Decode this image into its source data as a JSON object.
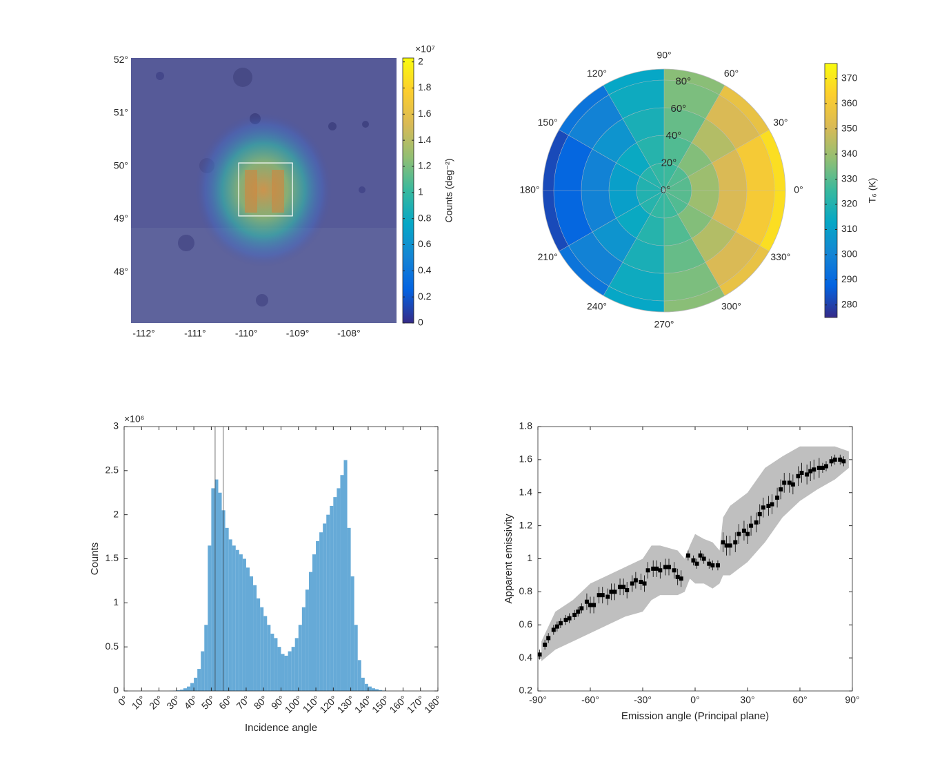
{
  "chart_data": [
    {
      "type": "map",
      "xlim": [
        -112.25,
        -107.07
      ],
      "ylim": [
        47.04,
        52.04
      ],
      "xticks": [
        {
          "value": -112,
          "label": "-112°"
        },
        {
          "value": -111,
          "label": "-111°"
        },
        {
          "value": -110,
          "label": "-110°"
        },
        {
          "value": -109,
          "label": "-109°"
        },
        {
          "value": -108,
          "label": "-108°"
        }
      ],
      "yticks": [
        {
          "value": 48,
          "label": "48°"
        },
        {
          "value": 49,
          "label": "49°"
        },
        {
          "value": 50,
          "label": "50°"
        },
        {
          "value": 51,
          "label": "51°"
        },
        {
          "value": 52,
          "label": "52°"
        }
      ],
      "highlight_box": {
        "x": [
          -110.15,
          -109.1
        ],
        "y": [
          49.06,
          50.06
        ]
      },
      "colorbar": {
        "label": "Counts (deg⁻²)",
        "multiplier": "×10⁷",
        "colormap": "parula",
        "lim": [
          0,
          2.03
        ],
        "ticks": [
          0,
          0.2,
          0.4,
          0.6,
          0.8,
          1,
          1.2,
          1.4,
          1.6,
          1.8,
          2
        ]
      }
    },
    {
      "type": "polar",
      "rlim": [
        0,
        88
      ],
      "rticks": [
        {
          "value": 0,
          "label": "0°"
        },
        {
          "value": 20,
          "label": "20°"
        },
        {
          "value": 40,
          "label": "40°"
        },
        {
          "value": 60,
          "label": "60°"
        },
        {
          "value": 80,
          "label": "80°"
        }
      ],
      "thetaticks": [
        {
          "value": 0,
          "label": "0°"
        },
        {
          "value": 30,
          "label": "30°"
        },
        {
          "value": 60,
          "label": "60°"
        },
        {
          "value": 90,
          "label": "90°"
        },
        {
          "value": 120,
          "label": "120°"
        },
        {
          "value": 150,
          "label": "150°"
        },
        {
          "value": 180,
          "label": "180°"
        },
        {
          "value": 210,
          "label": "210°"
        },
        {
          "value": 240,
          "label": "240°"
        },
        {
          "value": 270,
          "label": "270°"
        },
        {
          "value": 300,
          "label": "300°"
        },
        {
          "value": 330,
          "label": "330°"
        }
      ],
      "theta_edges": [
        0,
        30,
        60,
        90,
        120,
        150,
        180,
        210,
        240,
        270,
        300,
        330,
        360
      ],
      "r_edges": [
        0,
        20,
        40,
        60,
        80,
        88
      ],
      "values": [
        [
          330,
          329,
          326,
          324,
          321,
          320,
          320,
          321,
          324,
          326,
          329,
          330
        ],
        [
          340,
          336,
          329,
          321,
          314,
          310,
          310,
          314,
          321,
          329,
          336,
          340
        ],
        [
          351,
          344,
          332,
          318,
          306,
          299,
          299,
          306,
          318,
          332,
          344,
          351
        ],
        [
          361,
          351,
          335,
          315,
          299,
          289,
          289,
          299,
          315,
          335,
          351,
          361
        ],
        [
          368,
          356,
          337,
          313,
          294,
          282,
          282,
          294,
          313,
          337,
          356,
          368
        ]
      ],
      "colorbar": {
        "label": "T₆ (K)",
        "colormap": "parula",
        "lim": [
          275,
          376
        ],
        "ticks": [
          280,
          290,
          300,
          310,
          320,
          330,
          340,
          350,
          360,
          370
        ]
      }
    },
    {
      "type": "histogram",
      "color": "#66aad7",
      "bins": [
        26,
        28,
        30,
        32,
        34,
        36,
        38,
        40,
        42,
        44,
        46,
        48,
        50,
        52,
        54,
        56,
        58,
        60,
        62,
        64,
        66,
        68,
        70,
        72,
        74,
        76,
        78,
        80,
        82,
        84,
        86,
        88,
        90,
        92,
        94,
        96,
        98,
        100,
        102,
        104,
        106,
        108,
        110,
        112,
        114,
        116,
        118,
        120,
        122,
        124,
        126,
        128,
        130,
        132,
        134,
        136,
        138,
        140,
        142,
        144,
        146,
        148,
        150
      ],
      "values": [
        0.002,
        0.004,
        0.008,
        0.015,
        0.03,
        0.05,
        0.09,
        0.15,
        0.25,
        0.45,
        0.75,
        1.65,
        2.3,
        2.4,
        2.25,
        2.05,
        1.85,
        1.72,
        1.65,
        1.6,
        1.55,
        1.5,
        1.4,
        1.3,
        1.2,
        1.05,
        0.95,
        0.85,
        0.75,
        0.65,
        0.6,
        0.5,
        0.42,
        0.4,
        0.45,
        0.5,
        0.6,
        0.75,
        0.95,
        1.15,
        1.35,
        1.55,
        1.7,
        1.8,
        1.9,
        2.0,
        2.1,
        2.2,
        2.3,
        2.45,
        2.62,
        1.85,
        1.3,
        0.75,
        0.35,
        0.15,
        0.08,
        0.05,
        0.03,
        0.02,
        0.01,
        0.005
      ],
      "vlines": [
        52.2,
        56.9
      ],
      "xlim": [
        0,
        180
      ],
      "ylim": [
        0,
        3
      ],
      "xticks": [
        {
          "value": 0,
          "label": "0°"
        },
        {
          "value": 10,
          "label": "10°"
        },
        {
          "value": 20,
          "label": "20°"
        },
        {
          "value": 30,
          "label": "30°"
        },
        {
          "value": 40,
          "label": "40°"
        },
        {
          "value": 50,
          "label": "50°"
        },
        {
          "value": 60,
          "label": "60°"
        },
        {
          "value": 70,
          "label": "70°"
        },
        {
          "value": 80,
          "label": "80°"
        },
        {
          "value": 90,
          "label": "90°"
        },
        {
          "value": 100,
          "label": "100°"
        },
        {
          "value": 110,
          "label": "110°"
        },
        {
          "value": 120,
          "label": "120°"
        },
        {
          "value": 130,
          "label": "130°"
        },
        {
          "value": 140,
          "label": "140°"
        },
        {
          "value": 150,
          "label": "150°"
        },
        {
          "value": 160,
          "label": "160°"
        },
        {
          "value": 170,
          "label": "170°"
        },
        {
          "value": 180,
          "label": "180°"
        }
      ],
      "yticks": [
        0,
        0.5,
        1,
        1.5,
        2,
        2.5,
        3
      ],
      "y_multiplier": "×10⁶",
      "xlabel": "Incidence angle",
      "ylabel": "Counts"
    },
    {
      "type": "scatter",
      "color": "#000000",
      "xlim": [
        -90,
        90
      ],
      "ylim": [
        0.2,
        1.8
      ],
      "xticks": [
        {
          "value": -90,
          "label": "-90°"
        },
        {
          "value": -60,
          "label": "-60°"
        },
        {
          "value": -30,
          "label": "-30°"
        },
        {
          "value": 0,
          "label": "0°"
        },
        {
          "value": 30,
          "label": "30°"
        },
        {
          "value": 60,
          "label": "60°"
        },
        {
          "value": 90,
          "label": "90°"
        }
      ],
      "yticks": [
        0.2,
        0.4,
        0.6,
        0.8,
        1,
        1.2,
        1.4,
        1.6,
        1.8
      ],
      "xlabel": "Emission angle (Principal plane)",
      "ylabel": "Apparent emissivity",
      "band": {
        "color": "#b4b4b4",
        "x": [
          -88,
          -80,
          -70,
          -60,
          -50,
          -40,
          -30,
          -25,
          -20,
          -10,
          -6,
          -3,
          0,
          5,
          10,
          14,
          16,
          20,
          30,
          40,
          50,
          60,
          70,
          80,
          88
        ],
        "lower": [
          0.38,
          0.45,
          0.5,
          0.55,
          0.6,
          0.65,
          0.68,
          0.75,
          0.78,
          0.78,
          0.8,
          0.88,
          0.85,
          0.85,
          0.82,
          0.85,
          0.9,
          0.9,
          0.98,
          1.1,
          1.25,
          1.35,
          1.42,
          1.48,
          1.55
        ],
        "upper": [
          0.5,
          0.68,
          0.75,
          0.85,
          0.9,
          0.95,
          1.0,
          1.08,
          1.08,
          1.05,
          1.0,
          1.08,
          1.15,
          1.12,
          1.1,
          1.05,
          1.25,
          1.32,
          1.4,
          1.55,
          1.62,
          1.68,
          1.68,
          1.68,
          1.65
        ]
      },
      "x": [
        -89,
        -86,
        -84,
        -81,
        -79,
        -77,
        -74,
        -72,
        -69,
        -67,
        -65,
        -62,
        -60,
        -58,
        -55,
        -53,
        -50,
        -48,
        -46,
        -43,
        -41,
        -39,
        -36,
        -34,
        -31,
        -29,
        -27,
        -24,
        -22,
        -20,
        -17,
        -15,
        -12,
        -10,
        -8,
        -4,
        -1,
        1,
        3,
        5,
        8,
        10,
        13,
        16,
        18,
        20,
        23,
        25,
        28,
        30,
        32,
        35,
        37,
        39,
        42,
        44,
        47,
        49,
        51,
        54,
        56,
        59,
        61,
        64,
        66,
        68,
        71,
        73,
        75,
        78,
        80,
        83,
        85
      ],
      "values": [
        0.42,
        0.48,
        0.52,
        0.57,
        0.59,
        0.61,
        0.63,
        0.64,
        0.66,
        0.68,
        0.7,
        0.74,
        0.72,
        0.72,
        0.78,
        0.78,
        0.77,
        0.8,
        0.8,
        0.83,
        0.83,
        0.81,
        0.85,
        0.87,
        0.86,
        0.85,
        0.93,
        0.94,
        0.94,
        0.93,
        0.95,
        0.95,
        0.93,
        0.89,
        0.88,
        1.02,
        0.99,
        0.97,
        1.02,
        1.0,
        0.97,
        0.96,
        0.96,
        1.1,
        1.08,
        1.08,
        1.1,
        1.15,
        1.17,
        1.15,
        1.2,
        1.22,
        1.27,
        1.31,
        1.32,
        1.33,
        1.37,
        1.42,
        1.46,
        1.46,
        1.45,
        1.5,
        1.52,
        1.51,
        1.53,
        1.54,
        1.55,
        1.55,
        1.56,
        1.59,
        1.6,
        1.6,
        1.59
      ],
      "errors": [
        0.03,
        0.03,
        0.03,
        0.03,
        0.03,
        0.03,
        0.03,
        0.03,
        0.03,
        0.03,
        0.03,
        0.05,
        0.05,
        0.05,
        0.05,
        0.05,
        0.05,
        0.05,
        0.05,
        0.05,
        0.05,
        0.05,
        0.05,
        0.05,
        0.05,
        0.05,
        0.05,
        0.05,
        0.05,
        0.05,
        0.05,
        0.05,
        0.05,
        0.05,
        0.05,
        0.03,
        0.03,
        0.03,
        0.03,
        0.03,
        0.03,
        0.03,
        0.03,
        0.06,
        0.06,
        0.06,
        0.06,
        0.06,
        0.06,
        0.06,
        0.06,
        0.06,
        0.06,
        0.06,
        0.06,
        0.06,
        0.06,
        0.06,
        0.06,
        0.06,
        0.06,
        0.06,
        0.06,
        0.06,
        0.06,
        0.06,
        0.06,
        0.03,
        0.03,
        0.03,
        0.03,
        0.03,
        0.03
      ]
    }
  ]
}
